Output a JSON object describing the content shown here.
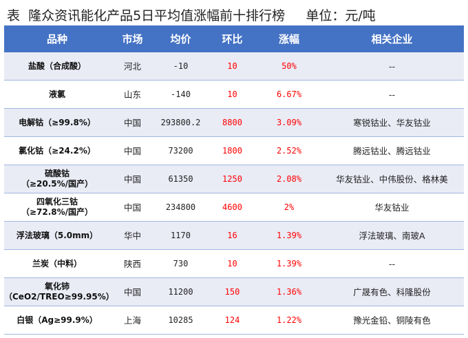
{
  "title": "表  隆众资讯能化产品5日平均值涨幅前十排行榜     单位：元/吨",
  "colors": {
    "header_bg": "#4472c4",
    "row_alt_bg": "#e9ebf5",
    "positive": "#ff0000"
  },
  "headers": [
    "品种",
    "市场",
    "均价",
    "环比",
    "涨幅",
    "相关企业"
  ],
  "rows": [
    {
      "name": "盐酸（合成酸）",
      "name2": "",
      "market": "河北",
      "price": "-10",
      "change": "10",
      "pct": "50%",
      "companies": "--"
    },
    {
      "name": "液氯",
      "name2": "",
      "market": "山东",
      "price": "-140",
      "change": "10",
      "pct": "6.67%",
      "companies": "--"
    },
    {
      "name": "电解钴（≥99.8%）",
      "name2": "",
      "market": "中国",
      "price": "293800.2",
      "change": "8800",
      "pct": "3.09%",
      "companies": "寒锐钴业、华友钴业"
    },
    {
      "name": "氯化钴（≥24.2%）",
      "name2": "",
      "market": "中国",
      "price": "73200",
      "change": "1800",
      "pct": "2.52%",
      "companies": "腾远钴业、腾远钴业"
    },
    {
      "name": "硫酸钴",
      "name2": "（≥20.5%/国产）",
      "market": "中国",
      "price": "61350",
      "change": "1250",
      "pct": "2.08%",
      "companies": "华友钴业、中伟股份、格林美"
    },
    {
      "name": "四氧化三钴",
      "name2": "（≥72.8%/国产）",
      "market": "中国",
      "price": "234800",
      "change": "4600",
      "pct": "2%",
      "companies": "华友钴业"
    },
    {
      "name": "浮法玻璃（5.0mm）",
      "name2": "",
      "market": "华中",
      "price": "1170",
      "change": "16",
      "pct": "1.39%",
      "companies": "浮法玻璃、南玻A"
    },
    {
      "name": "兰炭（中料）",
      "name2": "",
      "market": "陕西",
      "price": "730",
      "change": "10",
      "pct": "1.39%",
      "companies": "--"
    },
    {
      "name": "氧化铈",
      "name2": "（CeO2/TREO≥99.95%）",
      "market": "中国",
      "price": "11200",
      "change": "150",
      "pct": "1.36%",
      "companies": "广晟有色、科隆股份"
    },
    {
      "name": "白银（Ag≥99.9%）",
      "name2": "",
      "market": "上海",
      "price": "10285",
      "change": "124",
      "pct": "1.22%",
      "companies": "豫光金铅、铜陵有色"
    }
  ]
}
